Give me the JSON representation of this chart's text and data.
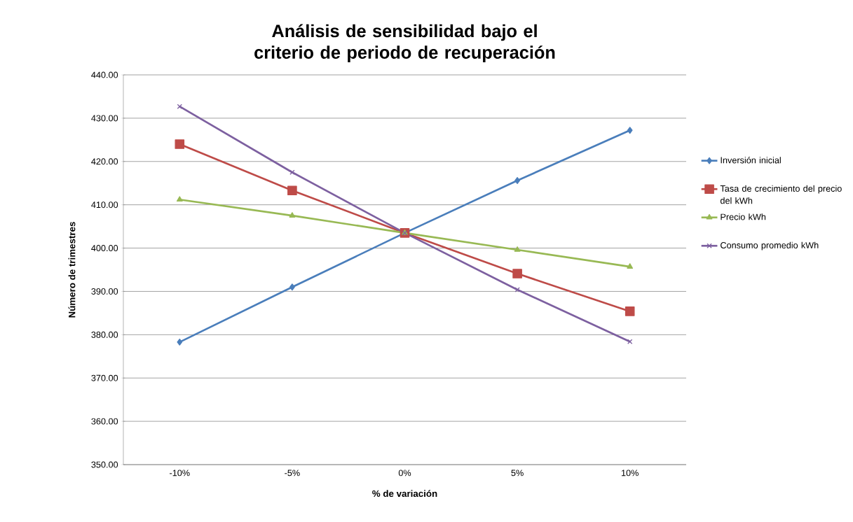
{
  "chart_data": {
    "type": "line",
    "title": "Análisis de sensibilidad bajo el criterio de periodo de recuperación",
    "xlabel": "% de variación",
    "ylabel": "Número de trimestres",
    "categories": [
      "-10%",
      "-5%",
      "0%",
      "5%",
      "10%"
    ],
    "series": [
      {
        "name": "Inversión inicial",
        "color": "#4a7ebb",
        "marker": "diamond",
        "values": [
          378.3,
          391.0,
          403.5,
          415.6,
          427.2
        ]
      },
      {
        "name": "Tasa de crecimiento del precio del kWh",
        "color": "#be4b48",
        "marker": "square",
        "values": [
          424.0,
          413.3,
          403.5,
          394.1,
          385.4
        ]
      },
      {
        "name": "Precio kWh",
        "color": "#98b954",
        "marker": "triangle",
        "values": [
          411.2,
          407.5,
          403.5,
          399.6,
          395.7
        ]
      },
      {
        "name": "Consumo promedio kWh",
        "color": "#7d60a0",
        "marker": "cross",
        "values": [
          432.7,
          417.5,
          403.5,
          390.4,
          378.4
        ]
      }
    ],
    "ylim": [
      350,
      440
    ],
    "yticks": [
      {
        "value": 350,
        "label": "350.00"
      },
      {
        "value": 360,
        "label": "360.00"
      },
      {
        "value": 370,
        "label": "370.00"
      },
      {
        "value": 380,
        "label": "380.00"
      },
      {
        "value": 390,
        "label": "390.00"
      },
      {
        "value": 400,
        "label": "400.00"
      },
      {
        "value": 410,
        "label": "410.00"
      },
      {
        "value": 420,
        "label": "420.00"
      },
      {
        "value": 430,
        "label": "430.00"
      },
      {
        "value": 440,
        "label": "440.00"
      }
    ],
    "grid": "y",
    "legend": "right",
    "line_style": "solid"
  }
}
